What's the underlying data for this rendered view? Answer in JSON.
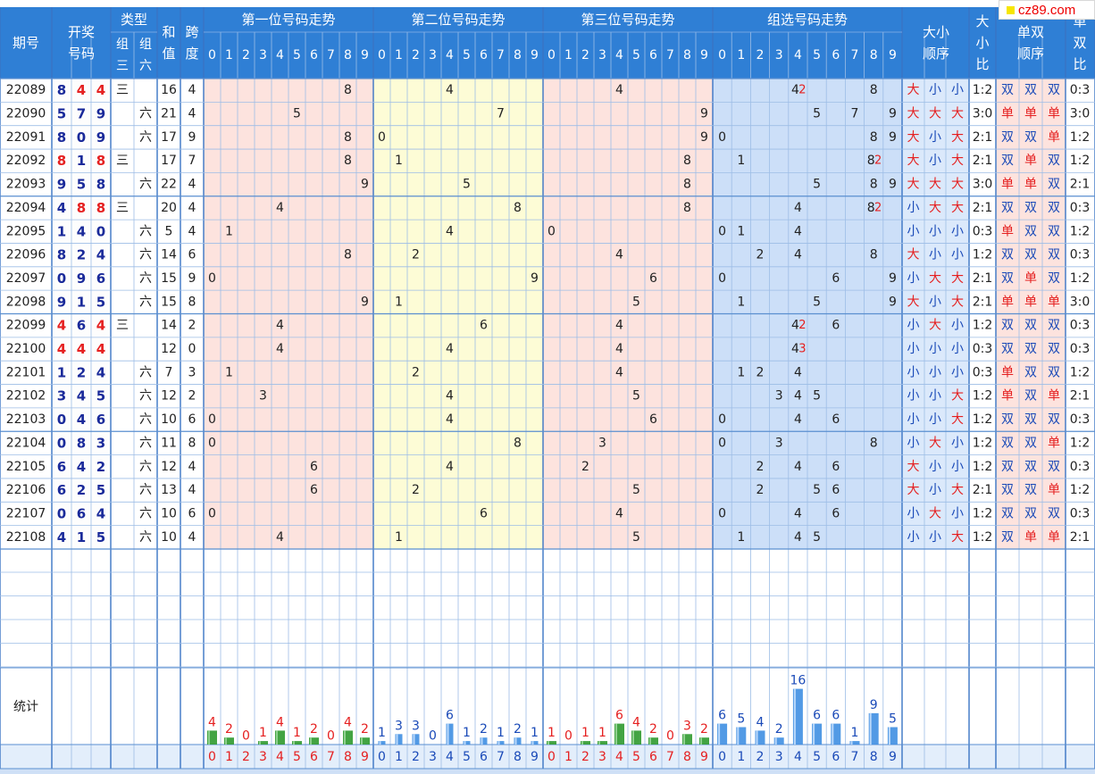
{
  "site": {
    "logo_text": "cz89.com"
  },
  "header": {
    "period": "期号",
    "draw_line1": "开奖",
    "draw_line2": "号码",
    "type": "类型",
    "type_z3_a": "组",
    "type_z3_b": "三",
    "type_z6_a": "组",
    "type_z6_b": "六",
    "sum_a": "和",
    "sum_b": "值",
    "span_a": "跨",
    "span_b": "度",
    "pos1": "第一位号码走势",
    "pos2": "第二位号码走势",
    "pos3": "第三位号码走势",
    "group": "组选号码走势",
    "bs_order_a": "大小",
    "bs_order_b": "顺序",
    "bs_ratio_a": "大",
    "bs_ratio_b": "小",
    "bs_ratio_c": "比",
    "oe_order_a": "单双",
    "oe_order_b": "顺序",
    "oe_ratio_a": "单",
    "oe_ratio_b": "双",
    "oe_ratio_c": "比"
  },
  "digits": [
    "0",
    "1",
    "2",
    "3",
    "4",
    "5",
    "6",
    "7",
    "8",
    "9"
  ],
  "draws": [
    {
      "period": "22089",
      "nums": [
        "8",
        "4",
        "4"
      ],
      "z3": "三",
      "z6": "",
      "sum": "16",
      "span": "4",
      "g": [
        "4",
        "2",
        "",
        "",
        "8"
      ],
      "bs": [
        "大",
        "小",
        "小"
      ],
      "bsr": "1:2",
      "oe": [
        "双",
        "双",
        "双"
      ],
      "oer": "0:3"
    },
    {
      "period": "22090",
      "nums": [
        "5",
        "7",
        "9"
      ],
      "z3": "",
      "z6": "六",
      "sum": "21",
      "span": "4",
      "g": [],
      "bs": [
        "大",
        "大",
        "大"
      ],
      "bsr": "3:0",
      "oe": [
        "单",
        "单",
        "单"
      ],
      "oer": "3:0"
    },
    {
      "period": "22091",
      "nums": [
        "8",
        "0",
        "9"
      ],
      "z3": "",
      "z6": "六",
      "sum": "17",
      "span": "9",
      "g": [],
      "bs": [
        "大",
        "小",
        "大"
      ],
      "bsr": "2:1",
      "oe": [
        "双",
        "双",
        "单"
      ],
      "oer": "1:2"
    },
    {
      "period": "22092",
      "nums": [
        "8",
        "1",
        "8"
      ],
      "z3": "三",
      "z6": "",
      "sum": "17",
      "span": "7",
      "g": [
        "8",
        "2"
      ],
      "bs": [
        "大",
        "小",
        "大"
      ],
      "bsr": "2:1",
      "oe": [
        "双",
        "单",
        "双"
      ],
      "oer": "1:2"
    },
    {
      "period": "22093",
      "nums": [
        "9",
        "5",
        "8"
      ],
      "z3": "",
      "z6": "六",
      "sum": "22",
      "span": "4",
      "g": [],
      "bs": [
        "大",
        "大",
        "大"
      ],
      "bsr": "3:0",
      "oe": [
        "单",
        "单",
        "双"
      ],
      "oer": "2:1"
    },
    {
      "period": "22094",
      "nums": [
        "4",
        "8",
        "8"
      ],
      "z3": "三",
      "z6": "",
      "sum": "20",
      "span": "4",
      "g": [
        "8",
        "2"
      ],
      "bs": [
        "小",
        "大",
        "大"
      ],
      "bsr": "2:1",
      "oe": [
        "双",
        "双",
        "双"
      ],
      "oer": "0:3"
    },
    {
      "period": "22095",
      "nums": [
        "1",
        "4",
        "0"
      ],
      "z3": "",
      "z6": "六",
      "sum": "5",
      "span": "4",
      "g": [],
      "bs": [
        "小",
        "小",
        "小"
      ],
      "bsr": "0:3",
      "oe": [
        "单",
        "双",
        "双"
      ],
      "oer": "1:2"
    },
    {
      "period": "22096",
      "nums": [
        "8",
        "2",
        "4"
      ],
      "z3": "",
      "z6": "六",
      "sum": "14",
      "span": "6",
      "g": [],
      "bs": [
        "大",
        "小",
        "小"
      ],
      "bsr": "1:2",
      "oe": [
        "双",
        "双",
        "双"
      ],
      "oer": "0:3"
    },
    {
      "period": "22097",
      "nums": [
        "0",
        "9",
        "6"
      ],
      "z3": "",
      "z6": "六",
      "sum": "15",
      "span": "9",
      "g": [],
      "bs": [
        "小",
        "大",
        "大"
      ],
      "bsr": "2:1",
      "oe": [
        "双",
        "单",
        "双"
      ],
      "oer": "1:2"
    },
    {
      "period": "22098",
      "nums": [
        "9",
        "1",
        "5"
      ],
      "z3": "",
      "z6": "六",
      "sum": "15",
      "span": "8",
      "g": [],
      "bs": [
        "大",
        "小",
        "大"
      ],
      "bsr": "2:1",
      "oe": [
        "单",
        "单",
        "单"
      ],
      "oer": "3:0"
    },
    {
      "period": "22099",
      "nums": [
        "4",
        "6",
        "4"
      ],
      "z3": "三",
      "z6": "",
      "sum": "14",
      "span": "2",
      "g": [
        "4",
        "2"
      ],
      "bs": [
        "小",
        "大",
        "小"
      ],
      "bsr": "1:2",
      "oe": [
        "双",
        "双",
        "双"
      ],
      "oer": "0:3"
    },
    {
      "period": "22100",
      "nums": [
        "4",
        "4",
        "4"
      ],
      "z3": "",
      "z6": "",
      "sum": "12",
      "span": "0",
      "g": [
        "4",
        "3"
      ],
      "bs": [
        "小",
        "小",
        "小"
      ],
      "bsr": "0:3",
      "oe": [
        "双",
        "双",
        "双"
      ],
      "oer": "0:3"
    },
    {
      "period": "22101",
      "nums": [
        "1",
        "2",
        "4"
      ],
      "z3": "",
      "z6": "六",
      "sum": "7",
      "span": "3",
      "g": [],
      "bs": [
        "小",
        "小",
        "小"
      ],
      "bsr": "0:3",
      "oe": [
        "单",
        "双",
        "双"
      ],
      "oer": "1:2"
    },
    {
      "period": "22102",
      "nums": [
        "3",
        "4",
        "5"
      ],
      "z3": "",
      "z6": "六",
      "sum": "12",
      "span": "2",
      "g": [],
      "bs": [
        "小",
        "小",
        "大"
      ],
      "bsr": "1:2",
      "oe": [
        "单",
        "双",
        "单"
      ],
      "oer": "2:1"
    },
    {
      "period": "22103",
      "nums": [
        "0",
        "4",
        "6"
      ],
      "z3": "",
      "z6": "六",
      "sum": "10",
      "span": "6",
      "g": [],
      "bs": [
        "小",
        "小",
        "大"
      ],
      "bsr": "1:2",
      "oe": [
        "双",
        "双",
        "双"
      ],
      "oer": "0:3"
    },
    {
      "period": "22104",
      "nums": [
        "0",
        "8",
        "3"
      ],
      "z3": "",
      "z6": "六",
      "sum": "11",
      "span": "8",
      "g": [],
      "bs": [
        "小",
        "大",
        "小"
      ],
      "bsr": "1:2",
      "oe": [
        "双",
        "双",
        "单"
      ],
      "oer": "1:2"
    },
    {
      "period": "22105",
      "nums": [
        "6",
        "4",
        "2"
      ],
      "z3": "",
      "z6": "六",
      "sum": "12",
      "span": "4",
      "g": [],
      "bs": [
        "大",
        "小",
        "小"
      ],
      "bsr": "1:2",
      "oe": [
        "双",
        "双",
        "双"
      ],
      "oer": "0:3"
    },
    {
      "period": "22106",
      "nums": [
        "6",
        "2",
        "5"
      ],
      "z3": "",
      "z6": "六",
      "sum": "13",
      "span": "4",
      "g": [],
      "bs": [
        "大",
        "小",
        "大"
      ],
      "bsr": "2:1",
      "oe": [
        "双",
        "双",
        "单"
      ],
      "oer": "1:2"
    },
    {
      "period": "22107",
      "nums": [
        "0",
        "6",
        "4"
      ],
      "z3": "",
      "z6": "六",
      "sum": "10",
      "span": "6",
      "g": [],
      "bs": [
        "小",
        "大",
        "小"
      ],
      "bsr": "1:2",
      "oe": [
        "双",
        "双",
        "双"
      ],
      "oer": "0:3"
    },
    {
      "period": "22108",
      "nums": [
        "4",
        "1",
        "5"
      ],
      "z3": "",
      "z6": "六",
      "sum": "10",
      "span": "4",
      "g": [],
      "bs": [
        "小",
        "小",
        "大"
      ],
      "bsr": "1:2",
      "oe": [
        "双",
        "单",
        "单"
      ],
      "oer": "2:1"
    }
  ],
  "stats": {
    "label": "统计",
    "pos1": [
      4,
      2,
      0,
      1,
      4,
      1,
      2,
      0,
      4,
      2
    ],
    "pos2": [
      1,
      3,
      3,
      0,
      6,
      1,
      2,
      1,
      2,
      1
    ],
    "pos3": [
      1,
      0,
      1,
      1,
      6,
      4,
      2,
      0,
      3,
      2
    ],
    "group": [
      6,
      5,
      4,
      2,
      16,
      6,
      6,
      1,
      9,
      5
    ]
  },
  "colors": {
    "header_bg": "#2f7fd5",
    "border": "#5a8fd0",
    "pos1_bg": "#fde3de",
    "pos2_bg": "#fdfcd6",
    "pos3_bg": "#fde3de",
    "group_bg": "#ccdff8",
    "bar_green": "#2f9a2f",
    "bar_blue": "#3f8fe2",
    "red": "#e52020",
    "navy": "#1a2a9a"
  },
  "chart_data": {
    "type": "bar",
    "title": "统计",
    "categories": [
      "0",
      "1",
      "2",
      "3",
      "4",
      "5",
      "6",
      "7",
      "8",
      "9"
    ],
    "series": [
      {
        "name": "第一位号码走势",
        "values": [
          4,
          2,
          0,
          1,
          4,
          1,
          2,
          0,
          4,
          2
        ]
      },
      {
        "name": "第二位号码走势",
        "values": [
          1,
          3,
          3,
          0,
          6,
          1,
          2,
          1,
          2,
          1
        ]
      },
      {
        "name": "第三位号码走势",
        "values": [
          1,
          0,
          1,
          1,
          6,
          4,
          2,
          0,
          3,
          2
        ]
      },
      {
        "name": "组选号码走势",
        "values": [
          6,
          5,
          4,
          2,
          16,
          6,
          6,
          1,
          9,
          5
        ]
      }
    ]
  }
}
